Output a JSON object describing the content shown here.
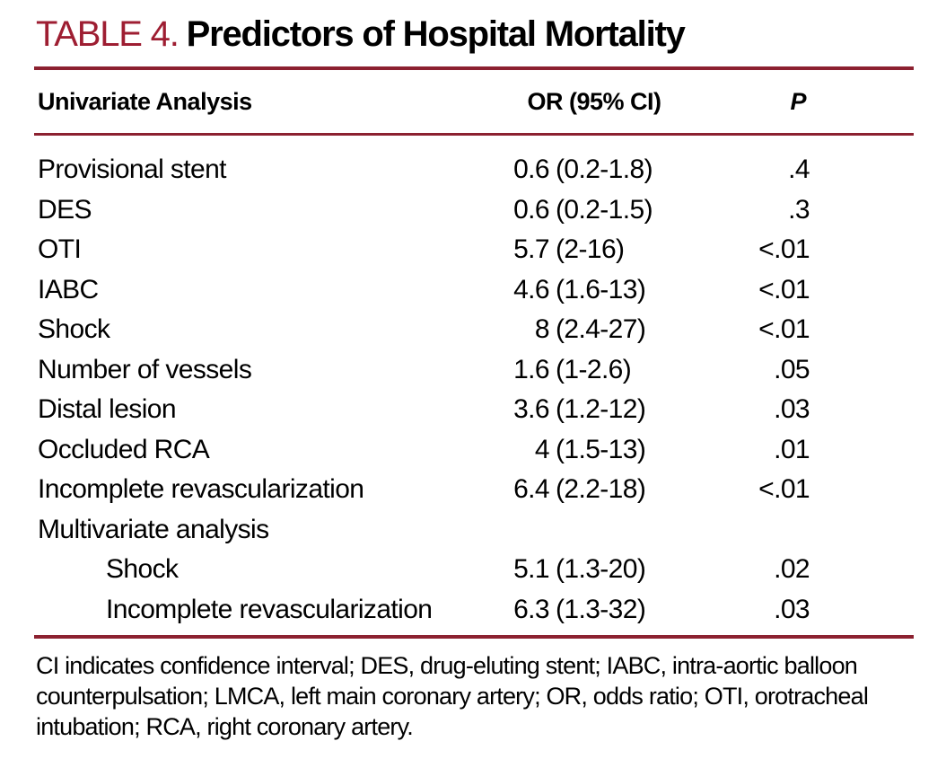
{
  "title": {
    "label": "TABLE 4.",
    "text": "Predictors of Hospital Mortality"
  },
  "table": {
    "headers": {
      "col1": "Univariate Analysis",
      "col2": "OR (95% CI)",
      "col3": "P"
    },
    "rows": [
      {
        "label": "Provisional stent",
        "or_value": "0.6",
        "or_ci": "(0.2-1.8)",
        "p": ".4",
        "indent": false,
        "section": false
      },
      {
        "label": "DES",
        "or_value": "0.6",
        "or_ci": "(0.2-1.5)",
        "p": ".3",
        "indent": false,
        "section": false
      },
      {
        "label": "OTI",
        "or_value": "5.7",
        "or_ci": "(2-16)",
        "p": "<.01",
        "indent": false,
        "section": false
      },
      {
        "label": "IABC",
        "or_value": "4.6",
        "or_ci": "(1.6-13)",
        "p": "<.01",
        "indent": false,
        "section": false
      },
      {
        "label": "Shock",
        "or_value": "8",
        "or_ci": "(2.4-27)",
        "p": "<.01",
        "indent": false,
        "section": false
      },
      {
        "label": "Number of vessels",
        "or_value": "1.6",
        "or_ci": "(1-2.6)",
        "p": ".05",
        "indent": false,
        "section": false
      },
      {
        "label": "Distal lesion",
        "or_value": "3.6",
        "or_ci": "(1.2-12)",
        "p": ".03",
        "indent": false,
        "section": false
      },
      {
        "label": "Occluded RCA",
        "or_value": "4",
        "or_ci": "(1.5-13)",
        "p": ".01",
        "indent": false,
        "section": false
      },
      {
        "label": "Incomplete revascularization",
        "or_value": "6.4",
        "or_ci": "(2.2-18)",
        "p": "<.01",
        "indent": false,
        "section": false
      },
      {
        "label": "Multivariate analysis",
        "or_value": "",
        "or_ci": "",
        "p": "",
        "indent": false,
        "section": true
      },
      {
        "label": "Shock",
        "or_value": "5.1",
        "or_ci": "(1.3-20)",
        "p": ".02",
        "indent": true,
        "section": false
      },
      {
        "label": "Incomplete revascularization",
        "or_value": "6.3",
        "or_ci": "(1.3-32)",
        "p": ".03",
        "indent": true,
        "section": false
      }
    ]
  },
  "footnote": "CI indicates confidence interval; DES, drug-eluting stent; IABC, intra-aortic balloon counterpulsation; LMCA, left main coronary artery; OR, odds ratio; OTI, orotracheal intubation; RCA, right coronary artery.",
  "colors": {
    "accent": "#9e1e32",
    "rule": "#8c2130",
    "text": "#000000",
    "background": "#ffffff"
  }
}
